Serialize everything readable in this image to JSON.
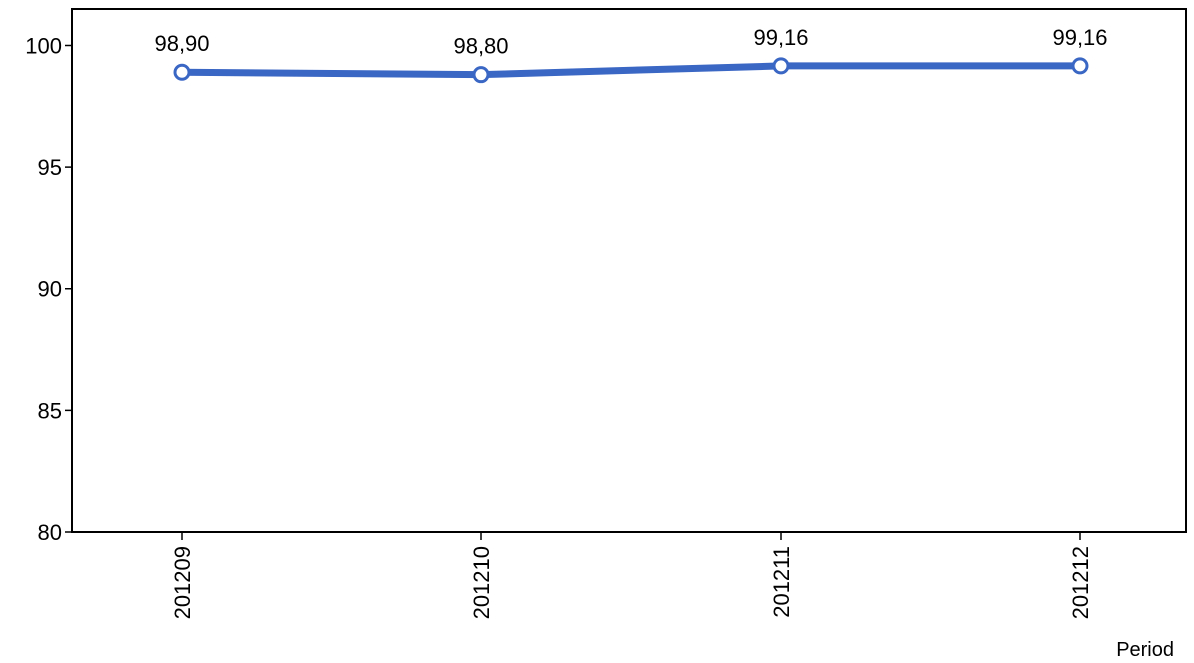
{
  "chart_data": {
    "type": "line",
    "categories": [
      "201209",
      "201210",
      "201211",
      "201212"
    ],
    "series": [
      {
        "values": [
          98.9,
          98.8,
          99.16,
          99.16
        ],
        "labels": [
          "98,90",
          "98,80",
          "99,16",
          "99,16"
        ],
        "color": "#3a66c4",
        "marker": "circle"
      }
    ],
    "xlabel": "Period",
    "ylabel": "",
    "ylim": [
      80,
      101.5
    ],
    "yticks": [
      80,
      85,
      90,
      95,
      100
    ],
    "ytick_labels": [
      "80",
      "85",
      "90",
      "95",
      "100"
    ],
    "x_tick_orientation": "vertical",
    "grid": false,
    "legend": "none"
  }
}
